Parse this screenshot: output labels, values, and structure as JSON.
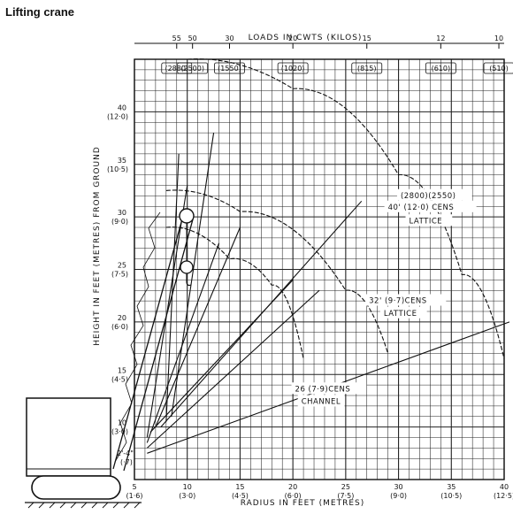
{
  "title": "Lifting crane",
  "chart_data": {
    "type": "line",
    "title": "Lifting crane",
    "xlabel": "RADIUS IN FEET (METRES)",
    "ylabel": "HEIGHT IN FEET (METRES) FROM GROUND",
    "top_axis_label": "LOADS IN CWTS (KILOS)",
    "xlim": [
      5,
      40
    ],
    "ylim": [
      5,
      45
    ],
    "grid": true,
    "x_ticks": [
      {
        "value": 5,
        "label": "5",
        "sub": "(1·6)"
      },
      {
        "value": 10,
        "label": "10",
        "sub": "(3·0)"
      },
      {
        "value": 15,
        "label": "15",
        "sub": "(4·5)"
      },
      {
        "value": 20,
        "label": "20",
        "sub": "(6·0)"
      },
      {
        "value": 25,
        "label": "25",
        "sub": "(7·5)"
      },
      {
        "value": 30,
        "label": "30",
        "sub": "(9·0)"
      },
      {
        "value": 35,
        "label": "35",
        "sub": "(10·5)"
      },
      {
        "value": 40,
        "label": "40",
        "sub": "(12·5)"
      }
    ],
    "y_ticks": [
      {
        "value": 10,
        "label": "10",
        "sub": "(3·0)"
      },
      {
        "value": 15,
        "label": "15",
        "sub": "(4·5)"
      },
      {
        "value": 20,
        "label": "20",
        "sub": "(6·0)"
      },
      {
        "value": 25,
        "label": "25",
        "sub": "(7·5)"
      },
      {
        "value": 30,
        "label": "30",
        "sub": "(9·0)"
      },
      {
        "value": 35,
        "label": "35",
        "sub": "(10·5)"
      },
      {
        "value": 40,
        "label": "40",
        "sub": "(12·0)"
      }
    ],
    "top_ticks": [
      {
        "x": 9.0,
        "label": "55",
        "box": "(2880)"
      },
      {
        "x": 10.5,
        "label": "50",
        "box": "(2500)"
      },
      {
        "x": 14.0,
        "label": "30",
        "box": "(1550)"
      },
      {
        "x": 20.0,
        "label": "20",
        "box": "(1020)"
      },
      {
        "x": 27.0,
        "label": "15",
        "box": "(815)"
      },
      {
        "x": 34.0,
        "label": "12",
        "box": "(610)"
      },
      {
        "x": 39.5,
        "label": "10",
        "box": "(510)"
      }
    ],
    "mast_foot": {
      "x": 5,
      "y": 7.2,
      "label": "2'-4\"",
      "sub": "(·7)"
    },
    "series": [
      {
        "name": "40' (12·0) CENS LATTICE",
        "note": "(2800)(2550)",
        "radius": 40,
        "arc": [
          [
            10.0,
            45.0
          ],
          [
            20.0,
            42.2
          ],
          [
            30.0,
            34.0
          ],
          [
            36.0,
            24.5
          ],
          [
            40.0,
            16.5
          ]
        ],
        "x_max": 40.0
      },
      {
        "name": "32' (9·7) CENS LATTICE",
        "radius": 32,
        "arc": [
          [
            8.0,
            32.5
          ],
          [
            15.0,
            30.5
          ],
          [
            25.0,
            23.0
          ],
          [
            29.0,
            17.0
          ]
        ],
        "x_max": 29.5
      },
      {
        "name": "26' (7·9) CENS CHANNEL",
        "radius": 26,
        "arc": [
          [
            8.0,
            29.0
          ],
          [
            14.0,
            26.0
          ],
          [
            18.0,
            23.5
          ],
          [
            21.0,
            16.5
          ]
        ],
        "x_max": 21.3
      }
    ],
    "jib_lines": [
      {
        "from": [
          6.2,
          7.5
        ],
        "to": [
          40.5,
          20.0
        ]
      },
      {
        "from": [
          6.2,
          8.0
        ],
        "to": [
          22.5,
          23.0
        ]
      },
      {
        "from": [
          6.2,
          8.5
        ],
        "to": [
          13.0,
          27.5
        ]
      },
      {
        "from": [
          6.2,
          9.0
        ],
        "to": [
          10.0,
          33.0
        ]
      },
      {
        "from": [
          6.5,
          9.5
        ],
        "to": [
          20.0,
          24.0
        ]
      },
      {
        "from": [
          7.5,
          10.0
        ],
        "to": [
          26.5,
          31.5
        ]
      },
      {
        "from": [
          8.5,
          11.0
        ],
        "to": [
          12.5,
          38.0
        ]
      },
      {
        "from": [
          7.0,
          10.0
        ],
        "to": [
          15.0,
          29.0
        ]
      },
      {
        "from": [
          8.0,
          10.5
        ],
        "to": [
          9.2,
          36.0
        ]
      }
    ],
    "labels": [
      {
        "text": "(2800)(2550)",
        "x": 30.2,
        "y": 31.8
      },
      {
        "text": "40' (12·0) CENS",
        "x": 29.0,
        "y": 30.7
      },
      {
        "text": "LATTICE",
        "x": 31.0,
        "y": 29.4
      },
      {
        "text": "32' (9·7)CENS",
        "x": 27.2,
        "y": 21.8
      },
      {
        "text": "LATTICE",
        "x": 28.6,
        "y": 20.6
      },
      {
        "text": "26 (7·9)CENS",
        "x": 20.2,
        "y": 13.4
      },
      {
        "text": "CHANNEL",
        "x": 20.8,
        "y": 12.2
      }
    ]
  }
}
